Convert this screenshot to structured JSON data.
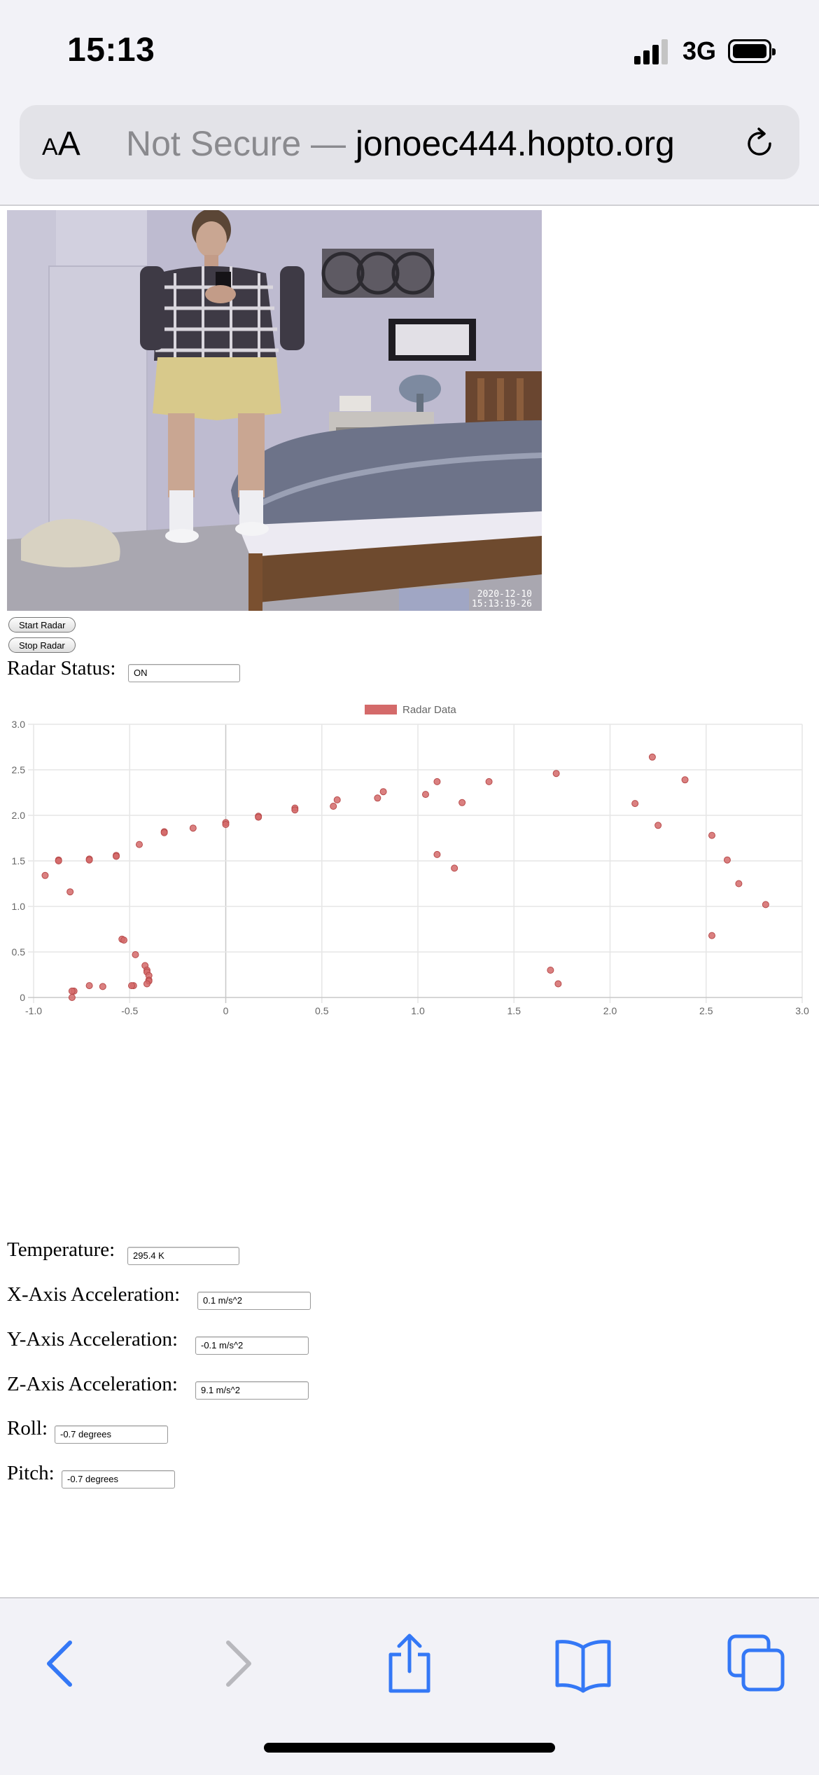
{
  "status_bar": {
    "time": "15:13",
    "carrier": "3G"
  },
  "browser": {
    "text_size_button": {
      "small": "A",
      "large": "A"
    },
    "url_prefix": "Not Secure — ",
    "url_host": "jonoec444.hopto.org"
  },
  "camera": {
    "timestamp_line1": "2020-12-10",
    "timestamp_line2": "15:13:19-26"
  },
  "controls": {
    "start_label": "Start Radar",
    "stop_label": "Stop Radar",
    "radar_status_label": "Radar Status:",
    "radar_status_value": "ON"
  },
  "chart_data": {
    "type": "scatter",
    "title": "",
    "xlabel": "",
    "ylabel": "",
    "xlim": [
      -1.0,
      3.0
    ],
    "ylim": [
      0,
      3.0
    ],
    "grid": true,
    "legend_position": "top-center",
    "x_ticks": [
      "-1.0",
      "-0.5",
      "0",
      "0.5",
      "1.0",
      "1.5",
      "2.0",
      "2.5",
      "3.0"
    ],
    "y_ticks": [
      "0",
      "0.5",
      "1.0",
      "1.5",
      "2.0",
      "2.5",
      "3.0"
    ],
    "series": [
      {
        "name": "Radar Data",
        "color": "#d46a6a",
        "points": [
          [
            -0.94,
            1.34
          ],
          [
            -0.87,
            1.51
          ],
          [
            -0.87,
            1.5
          ],
          [
            -0.81,
            1.16
          ],
          [
            -0.71,
            1.52
          ],
          [
            -0.71,
            1.51
          ],
          [
            -0.57,
            1.56
          ],
          [
            -0.57,
            1.55
          ],
          [
            -0.45,
            1.68
          ],
          [
            -0.32,
            1.82
          ],
          [
            -0.32,
            1.81
          ],
          [
            -0.17,
            1.86
          ],
          [
            0.0,
            1.92
          ],
          [
            0.0,
            1.9
          ],
          [
            0.17,
            1.99
          ],
          [
            0.17,
            1.98
          ],
          [
            0.36,
            2.08
          ],
          [
            0.36,
            2.06
          ],
          [
            0.56,
            2.1
          ],
          [
            0.58,
            2.17
          ],
          [
            0.79,
            2.19
          ],
          [
            0.82,
            2.26
          ],
          [
            1.04,
            2.23
          ],
          [
            1.1,
            2.37
          ],
          [
            1.23,
            2.14
          ],
          [
            1.37,
            2.37
          ],
          [
            1.1,
            1.57
          ],
          [
            1.19,
            1.42
          ],
          [
            1.72,
            2.46
          ],
          [
            2.13,
            2.13
          ],
          [
            2.22,
            2.64
          ],
          [
            2.25,
            1.89
          ],
          [
            2.39,
            2.39
          ],
          [
            2.53,
            1.78
          ],
          [
            2.61,
            1.51
          ],
          [
            2.67,
            1.25
          ],
          [
            2.81,
            1.02
          ],
          [
            2.53,
            0.68
          ],
          [
            1.69,
            0.3
          ],
          [
            1.73,
            0.15
          ],
          [
            -0.54,
            0.64
          ],
          [
            -0.53,
            0.63
          ],
          [
            -0.47,
            0.47
          ],
          [
            -0.42,
            0.35
          ],
          [
            -0.41,
            0.3
          ],
          [
            -0.41,
            0.28
          ],
          [
            -0.4,
            0.24
          ],
          [
            -0.4,
            0.19
          ],
          [
            -0.4,
            0.18
          ],
          [
            -0.41,
            0.15
          ],
          [
            -0.48,
            0.13
          ],
          [
            -0.49,
            0.13
          ],
          [
            -0.64,
            0.12
          ],
          [
            -0.71,
            0.13
          ],
          [
            -0.79,
            0.07
          ],
          [
            -0.8,
            0.07
          ],
          [
            -0.8,
            0.0
          ]
        ]
      }
    ]
  },
  "readings": {
    "temperature": {
      "label": "Temperature:",
      "value": "295.4 K"
    },
    "x_accel": {
      "label": "X-Axis Acceleration:",
      "value": "0.1 m/s^2"
    },
    "y_accel": {
      "label": "Y-Axis Acceleration:",
      "value": "-0.1 m/s^2"
    },
    "z_accel": {
      "label": "Z-Axis Acceleration:",
      "value": "9.1 m/s^2"
    },
    "roll": {
      "label": "Roll:",
      "value": "-0.7 degrees"
    },
    "pitch": {
      "label": "Pitch:",
      "value": "-0.7 degrees"
    }
  },
  "colors": {
    "ios_blue": "#3478f6",
    "disabled": "#b8b8bd",
    "point": "#d46a6a"
  }
}
